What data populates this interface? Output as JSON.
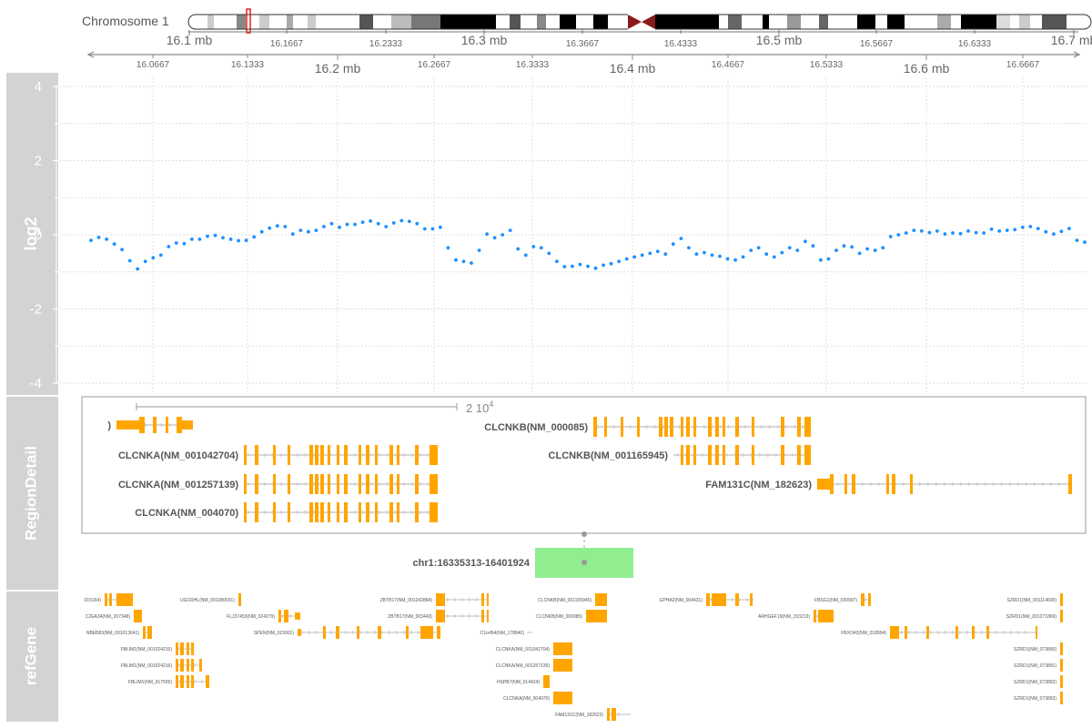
{
  "ideogram": {
    "label": "Chromosome 1",
    "ticks": [
      "16.1 mb",
      "16.1667",
      "16.2333",
      "16.3 mb",
      "16.3667",
      "16.4333",
      "16.5 mb",
      "16.5667",
      "16.6333",
      "16.7 mb"
    ]
  },
  "axis": {
    "major_ticks": [
      "16.2 mb",
      "16.4 mb",
      "16.6 mb"
    ],
    "minor_ticks": [
      "16.0667",
      "16.1333",
      "16.2667",
      "16.3333",
      "16.4667",
      "16.5333",
      "16.6667"
    ]
  },
  "tracks": {
    "log2": "log2",
    "region_detail": "RegionDetail",
    "refgene": "refGene"
  },
  "chart_data": {
    "type": "scatter",
    "ylabel": "log2",
    "ylim": [
      -4.2,
      4.2
    ],
    "yticks": [
      "4",
      "2",
      "0",
      "-2",
      "-4"
    ],
    "grid": true,
    "color": "#1E90FF",
    "y": [
      -0.15,
      -0.07,
      -0.12,
      -0.25,
      -0.4,
      -0.7,
      -0.92,
      -0.72,
      -0.62,
      -0.55,
      -0.32,
      -0.22,
      -0.24,
      -0.12,
      -0.12,
      -0.04,
      -0.02,
      -0.08,
      -0.12,
      -0.16,
      -0.15,
      -0.06,
      0.08,
      0.18,
      0.24,
      0.22,
      0.02,
      0.12,
      0.08,
      0.12,
      0.22,
      0.3,
      0.2,
      0.28,
      0.28,
      0.34,
      0.37,
      0.3,
      0.22,
      0.32,
      0.38,
      0.36,
      0.3,
      0.16,
      0.16,
      0.2,
      -0.35,
      -0.68,
      -0.72,
      -0.76,
      -0.42,
      0.02,
      -0.08,
      0.0,
      0.12,
      -0.38,
      -0.55,
      -0.32,
      -0.35,
      -0.5,
      -0.72,
      -0.86,
      -0.85,
      -0.8,
      -0.85,
      -0.9,
      -0.82,
      -0.78,
      -0.72,
      -0.65,
      -0.6,
      -0.55,
      -0.5,
      -0.45,
      -0.52,
      -0.25,
      -0.1,
      -0.35,
      -0.52,
      -0.48,
      -0.55,
      -0.58,
      -0.65,
      -0.68,
      -0.6,
      -0.42,
      -0.35,
      -0.52,
      -0.6,
      -0.48,
      -0.35,
      -0.42,
      -0.18,
      -0.3,
      -0.68,
      -0.65,
      -0.42,
      -0.3,
      -0.33,
      -0.5,
      -0.38,
      -0.42,
      -0.35,
      -0.05,
      0.0,
      0.05,
      0.12,
      0.1,
      0.06,
      0.1,
      0.02,
      0.05,
      0.03,
      0.1,
      0.06,
      0.05,
      0.15,
      0.1,
      0.12,
      0.14,
      0.2,
      0.22,
      0.17,
      0.08,
      0.02,
      0.09,
      0.17,
      -0.15,
      -0.2
    ]
  },
  "region_detail": {
    "scale_label": "2 10",
    "scale_exp": "4",
    "genes": [
      {
        "label": ")"
      },
      {
        "label": "CLCNKA(NM_001042704)"
      },
      {
        "label": "CLCNKA(NM_001257139)"
      },
      {
        "label": "CLCNKA(NM_004070)"
      },
      {
        "label": "CLCNKB(NM_000085)"
      },
      {
        "label": "CLCNKB(NM_001165945)"
      },
      {
        "label": "FAM131C(NM_182623)"
      }
    ],
    "region_label": "chr1:16335313-16401924"
  },
  "refgene": {
    "genes": [
      {
        "label": "015164)"
      },
      {
        "label": "C2EA34(NM_207348)"
      },
      {
        "label": "NBEB83(NM_001013641)"
      },
      {
        "label": "FBLIM1(NM_001024215)"
      },
      {
        "label": "FBLIM1(NM_001024216)"
      },
      {
        "label": "FBLIM1(NM_017556)"
      },
      {
        "label": "UGCRHL(NM_001080591)"
      },
      {
        "label": "FLJ37453(NM_024279)"
      },
      {
        "label": "SPEN(NM_015001)"
      },
      {
        "label": "ZBTB17(NM_001242884)"
      },
      {
        "label": "ZBTB17(NM_003443)"
      },
      {
        "label": "C1orf64(NM_178840)"
      },
      {
        "label": "CLCNKA(NM_001042704)"
      },
      {
        "label": "CLCNKA(NM_001257139)"
      },
      {
        "label": "HSPB7(NM_014424)"
      },
      {
        "label": "CLCNKA(NM_004070)"
      },
      {
        "label": "FAM131C(NM_182623)"
      },
      {
        "label": "CLCNKB(NM_001165945)"
      },
      {
        "label": "CLCNKB(NM_000085)"
      },
      {
        "label": "EPHA2(NM_004431)"
      },
      {
        "label": "ARHGEF19(NM_153213)"
      },
      {
        "label": "FBSG1(NM_030997)"
      },
      {
        "label": "FBXO42(NM_018994)"
      },
      {
        "label": "SZRD1(NM_001114600)"
      },
      {
        "label": "SZRD1(NM_001271869)"
      },
      {
        "label": "SZRD1(NM_073890)"
      },
      {
        "label": "SZRD1(NM_073891)"
      },
      {
        "label": "SZRD1(NM_073892)"
      },
      {
        "label": "SZRD1(NM_073893)"
      }
    ]
  }
}
